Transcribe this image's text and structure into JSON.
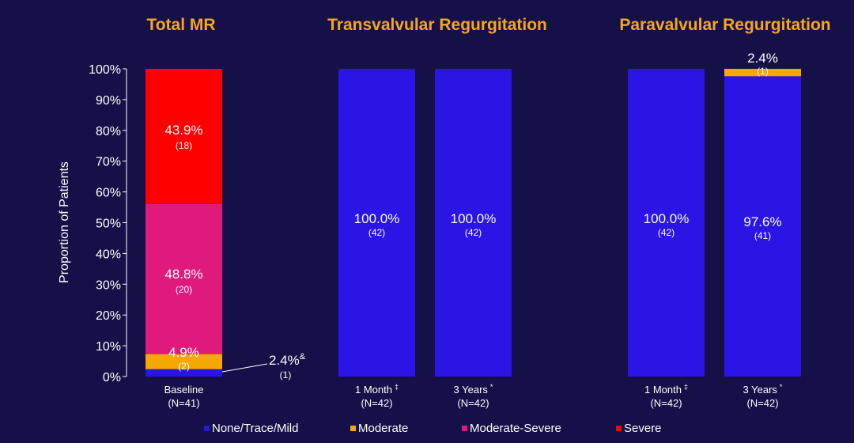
{
  "colors": {
    "background": "#151048",
    "header": "#f5a623",
    "none_trace_mild": "#2a14e6",
    "moderate": "#f5a800",
    "moderate_severe": "#e0197d",
    "severe": "#ff0000",
    "text": "#ffffff"
  },
  "chart_data": {
    "type": "bar",
    "stacked": true,
    "panel_titles": [
      "Total MR",
      "Transvalvular Regurgitation",
      "Paravalvular Regurgitation"
    ],
    "ylabel": "Proportion of Patients",
    "ylim": [
      0,
      100
    ],
    "y_ticks": [
      "0%",
      "10%",
      "20%",
      "30%",
      "40%",
      "50%",
      "60%",
      "70%",
      "80%",
      "90%",
      "100%"
    ],
    "categories": [
      {
        "panel": "Total MR",
        "label": "Baseline",
        "n": "(N=41)"
      },
      {
        "panel": "Transvalvular Regurgitation",
        "label": "1 Month",
        "sup": "‡",
        "n": "(N=42)"
      },
      {
        "panel": "Transvalvular Regurgitation",
        "label": "3 Years",
        "sup": "*",
        "n": "(N=42)"
      },
      {
        "panel": "Paravalvular Regurgitation",
        "label": "1 Month",
        "sup": "‡",
        "n": "(N=42)"
      },
      {
        "panel": "Paravalvular Regurgitation",
        "label": "3 Years",
        "sup": "*",
        "n": "(N=42)"
      }
    ],
    "series": [
      {
        "name": "None/Trace/Mild",
        "values": [
          2.4,
          100.0,
          100.0,
          100.0,
          97.6
        ],
        "labels": [
          "2.4%",
          "100.0%",
          "100.0%",
          "100.0%",
          "97.6%"
        ],
        "counts": [
          "(1)",
          "(42)",
          "(42)",
          "(42)",
          "(41)"
        ]
      },
      {
        "name": "Moderate",
        "values": [
          4.9,
          0,
          0,
          0,
          2.4
        ],
        "labels": [
          "4.9%",
          "",
          "",
          "",
          "2.4%"
        ],
        "counts": [
          "(2)",
          "",
          "",
          "",
          "(1)"
        ]
      },
      {
        "name": "Moderate-Severe",
        "values": [
          48.8,
          0,
          0,
          0,
          0
        ],
        "labels": [
          "48.8%",
          "",
          "",
          "",
          ""
        ],
        "counts": [
          "(20)",
          "",
          "",
          "",
          ""
        ]
      },
      {
        "name": "Severe",
        "values": [
          43.9,
          0,
          0,
          0,
          0
        ],
        "labels": [
          "43.9%",
          "",
          "",
          "",
          ""
        ],
        "counts": [
          "(18)",
          "",
          "",
          "",
          ""
        ]
      }
    ],
    "annotations": [
      {
        "text": "2.4%",
        "sup": "&",
        "count": "(1)"
      }
    ],
    "legend": "bottom"
  }
}
